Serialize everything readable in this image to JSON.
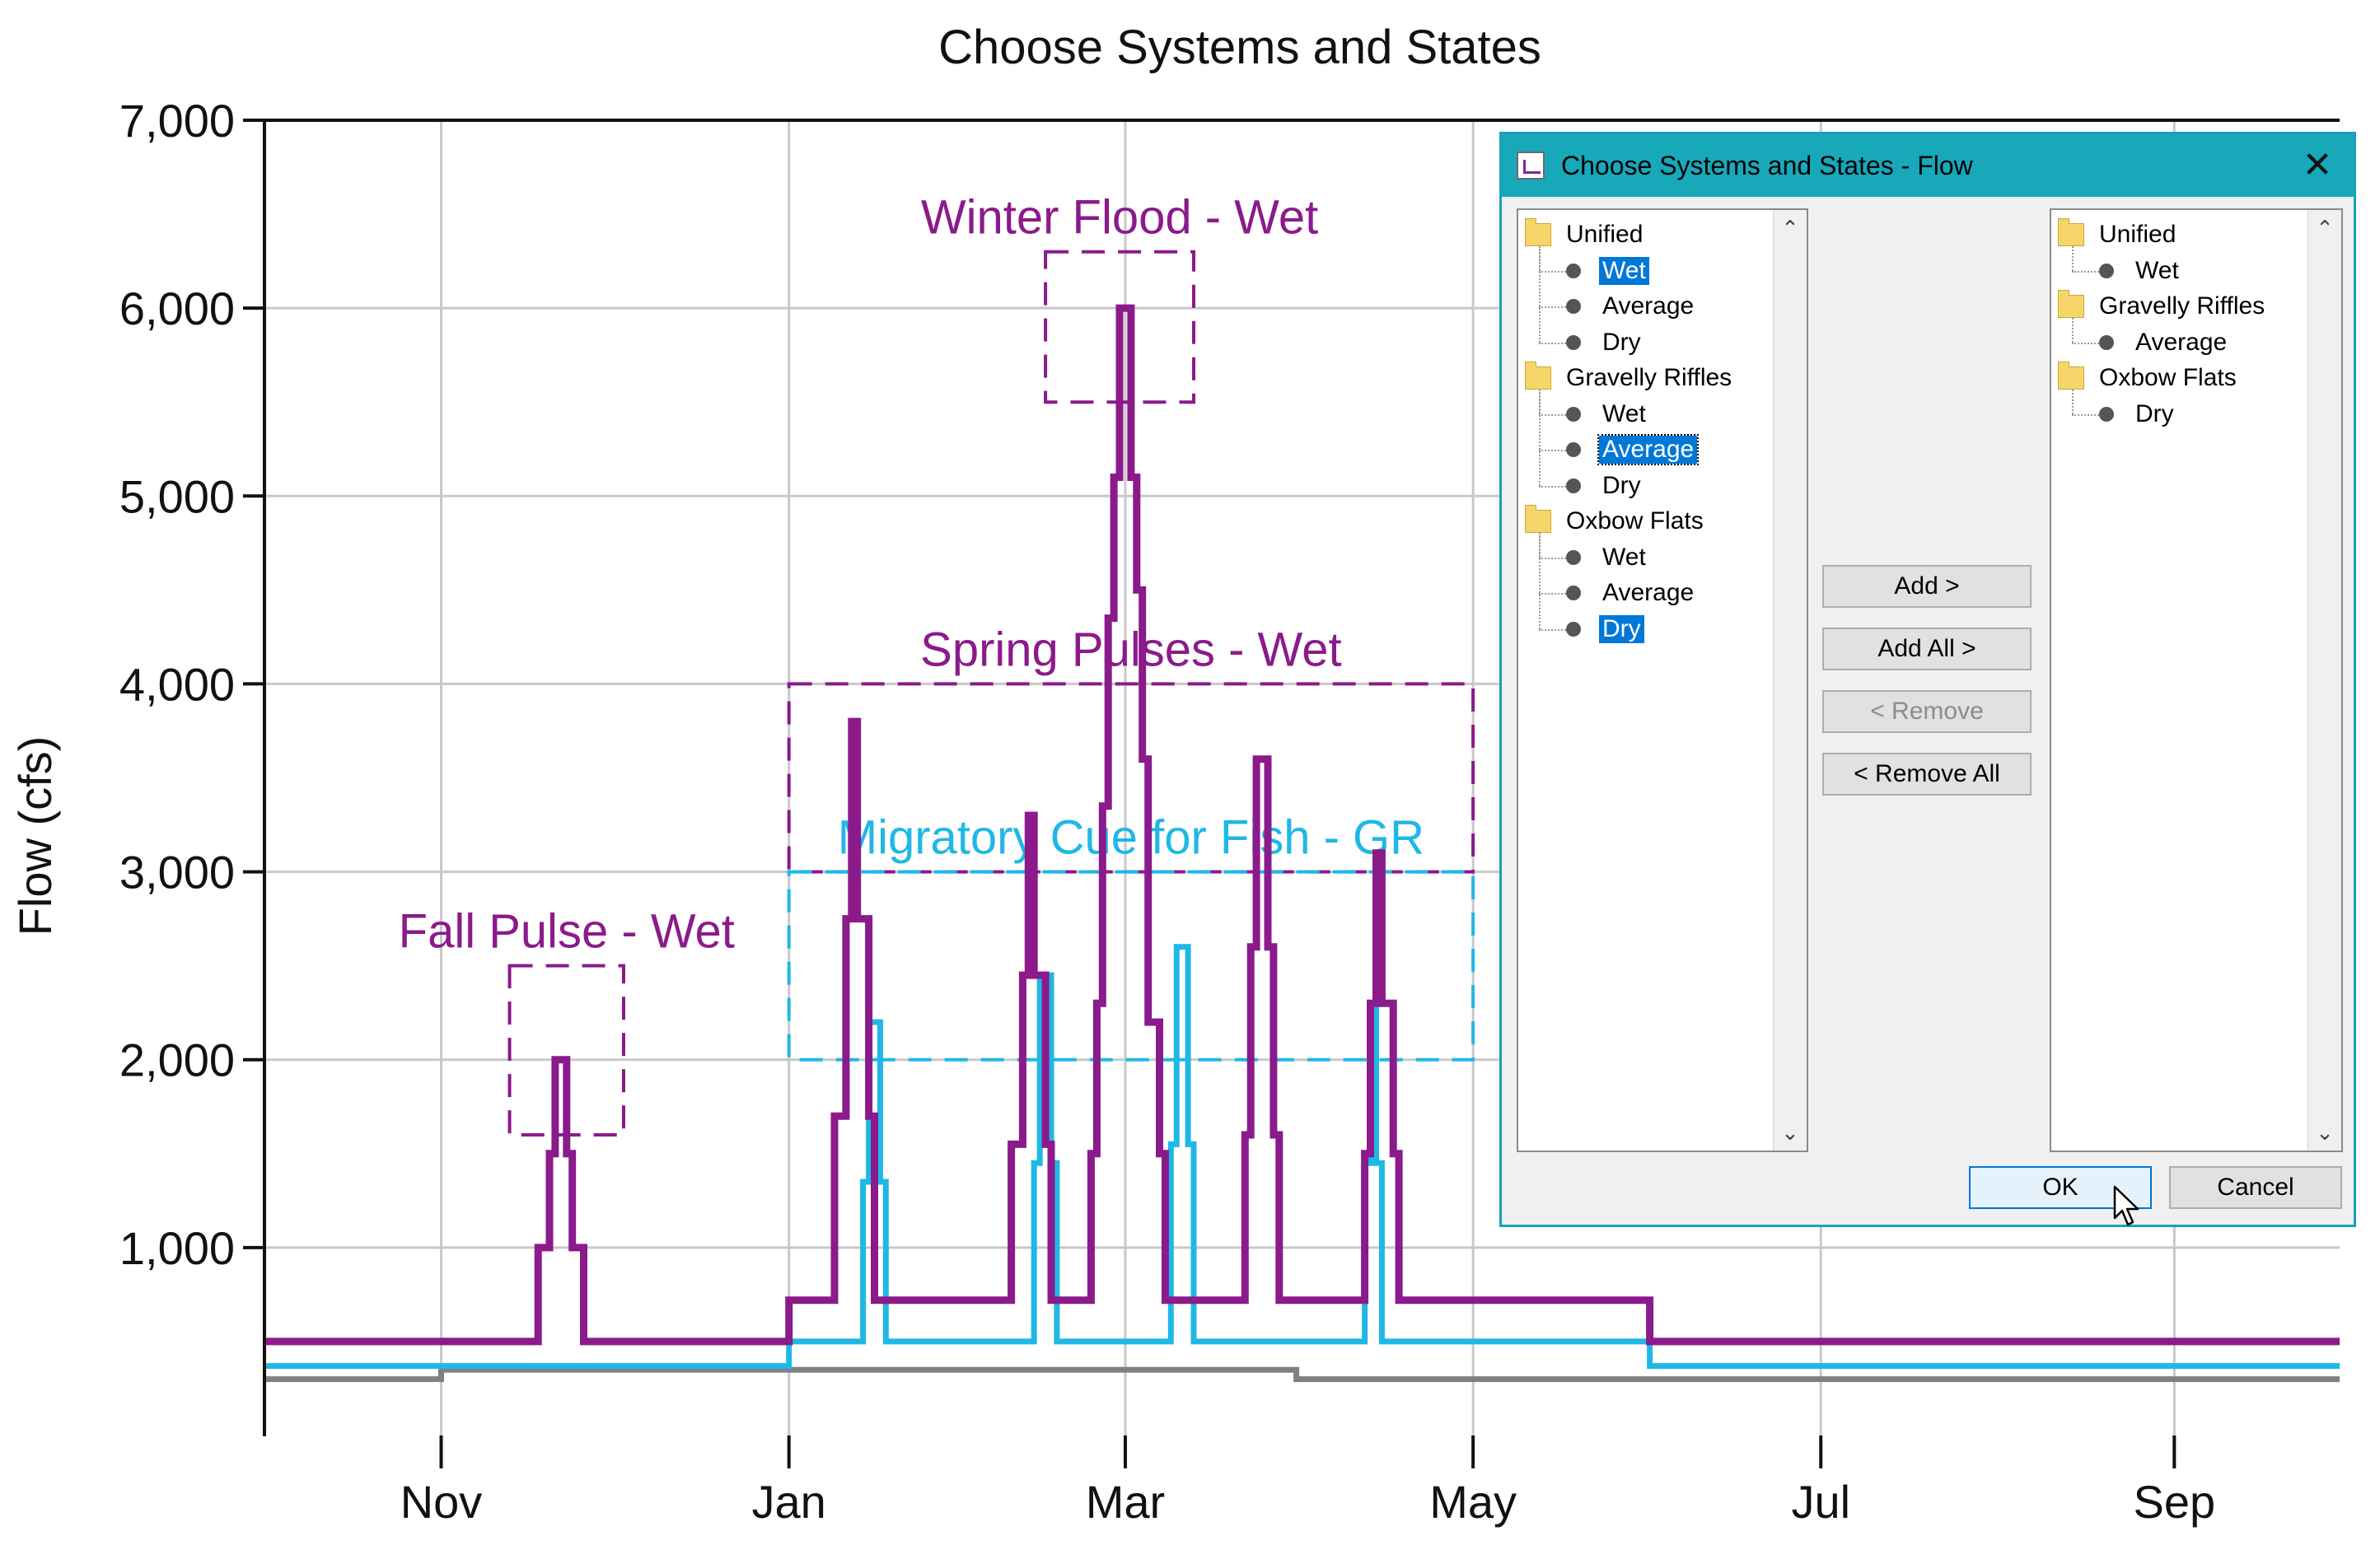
{
  "chart_data": {
    "type": "line",
    "title": "Choose Systems and States",
    "ylabel": "Flow (cfs)",
    "xlabel": "",
    "ylim": [
      0,
      7000
    ],
    "yticks": [
      1000,
      2000,
      3000,
      4000,
      5000,
      6000,
      7000
    ],
    "ytick_labels": [
      "1,000",
      "2,000",
      "3,000",
      "4,000",
      "5,000",
      "6,000",
      "7,000"
    ],
    "xlim": [
      "2000-10-01",
      "2001-09-30"
    ],
    "xticks": [
      "2000-11-01",
      "2001-01-01",
      "2001-03-01",
      "2001-05-01",
      "2001-07-01",
      "2001-09-01"
    ],
    "xtick_labels": [
      "Nov",
      "Jan",
      "Mar",
      "May",
      "Jul",
      "Sep"
    ],
    "grid": true,
    "series": [
      {
        "color": "#8b1a8b",
        "points": [
          [
            "2000-10-01",
            500
          ],
          [
            "2000-11-18",
            500
          ],
          [
            "2000-11-18",
            1000
          ],
          [
            "2000-11-20",
            1000
          ],
          [
            "2000-11-20",
            1500
          ],
          [
            "2000-11-21",
            1500
          ],
          [
            "2000-11-21",
            2000
          ],
          [
            "2000-11-23",
            2000
          ],
          [
            "2000-11-23",
            1500
          ],
          [
            "2000-11-24",
            1500
          ],
          [
            "2000-11-24",
            1000
          ],
          [
            "2000-11-26",
            1000
          ],
          [
            "2000-11-26",
            500
          ],
          [
            "2001-01-01",
            500
          ],
          [
            "2001-01-01",
            720
          ],
          [
            "2001-01-09",
            720
          ],
          [
            "2001-01-09",
            1700
          ],
          [
            "2001-01-11",
            1700
          ],
          [
            "2001-01-11",
            2750
          ],
          [
            "2001-01-12",
            2750
          ],
          [
            "2001-01-12",
            3800
          ],
          [
            "2001-01-13",
            3800
          ],
          [
            "2001-01-13",
            2750
          ],
          [
            "2001-01-15",
            2750
          ],
          [
            "2001-01-15",
            1700
          ],
          [
            "2001-01-16",
            1700
          ],
          [
            "2001-01-16",
            720
          ],
          [
            "2001-02-09",
            720
          ],
          [
            "2001-02-09",
            1550
          ],
          [
            "2001-02-11",
            1550
          ],
          [
            "2001-02-11",
            2450
          ],
          [
            "2001-02-12",
            2450
          ],
          [
            "2001-02-12",
            3300
          ],
          [
            "2001-02-13",
            3300
          ],
          [
            "2001-02-13",
            2450
          ],
          [
            "2001-02-15",
            2450
          ],
          [
            "2001-02-15",
            1550
          ],
          [
            "2001-02-16",
            1550
          ],
          [
            "2001-02-16",
            720
          ],
          [
            "2001-02-23",
            720
          ],
          [
            "2001-02-23",
            1500
          ],
          [
            "2001-02-24",
            1500
          ],
          [
            "2001-02-24",
            2300
          ],
          [
            "2001-02-25",
            2300
          ],
          [
            "2001-02-25",
            3350
          ],
          [
            "2001-02-26",
            3350
          ],
          [
            "2001-02-26",
            4350
          ],
          [
            "2001-02-27",
            4350
          ],
          [
            "2001-02-27",
            5100
          ],
          [
            "2001-02-28",
            5100
          ],
          [
            "2001-02-28",
            6000
          ],
          [
            "2001-03-02",
            6000
          ],
          [
            "2001-03-02",
            5100
          ],
          [
            "2001-03-03",
            5100
          ],
          [
            "2001-03-03",
            4500
          ],
          [
            "2001-03-04",
            4500
          ],
          [
            "2001-03-04",
            3600
          ],
          [
            "2001-03-05",
            3600
          ],
          [
            "2001-03-05",
            2200
          ],
          [
            "2001-03-07",
            2200
          ],
          [
            "2001-03-07",
            1500
          ],
          [
            "2001-03-08",
            1500
          ],
          [
            "2001-03-08",
            720
          ],
          [
            "2001-03-22",
            720
          ],
          [
            "2001-03-22",
            1600
          ],
          [
            "2001-03-23",
            1600
          ],
          [
            "2001-03-23",
            2600
          ],
          [
            "2001-03-24",
            2600
          ],
          [
            "2001-03-24",
            3600
          ],
          [
            "2001-03-26",
            3600
          ],
          [
            "2001-03-26",
            2600
          ],
          [
            "2001-03-27",
            2600
          ],
          [
            "2001-03-27",
            1600
          ],
          [
            "2001-03-28",
            1600
          ],
          [
            "2001-03-28",
            720
          ],
          [
            "2001-04-12",
            720
          ],
          [
            "2001-04-12",
            1500
          ],
          [
            "2001-04-13",
            1500
          ],
          [
            "2001-04-13",
            2300
          ],
          [
            "2001-04-14",
            2300
          ],
          [
            "2001-04-14",
            3100
          ],
          [
            "2001-04-15",
            3100
          ],
          [
            "2001-04-15",
            2300
          ],
          [
            "2001-04-17",
            2300
          ],
          [
            "2001-04-17",
            1500
          ],
          [
            "2001-04-18",
            1500
          ],
          [
            "2001-04-18",
            720
          ],
          [
            "2001-06-01",
            720
          ],
          [
            "2001-06-01",
            500
          ],
          [
            "2001-09-30",
            500
          ]
        ]
      },
      {
        "color": "#1fb8e6",
        "points": [
          [
            "2000-10-01",
            370
          ],
          [
            "2001-01-01",
            370
          ],
          [
            "2001-01-01",
            500
          ],
          [
            "2001-01-14",
            500
          ],
          [
            "2001-01-14",
            1350
          ],
          [
            "2001-01-15",
            1350
          ],
          [
            "2001-01-15",
            2200
          ],
          [
            "2001-01-17",
            2200
          ],
          [
            "2001-01-17",
            1350
          ],
          [
            "2001-01-18",
            1350
          ],
          [
            "2001-01-18",
            500
          ],
          [
            "2001-02-13",
            500
          ],
          [
            "2001-02-13",
            1450
          ],
          [
            "2001-02-14",
            1450
          ],
          [
            "2001-02-14",
            2450
          ],
          [
            "2001-02-16",
            2450
          ],
          [
            "2001-02-16",
            1450
          ],
          [
            "2001-02-17",
            1450
          ],
          [
            "2001-02-17",
            500
          ],
          [
            "2001-03-09",
            500
          ],
          [
            "2001-03-09",
            1550
          ],
          [
            "2001-03-10",
            1550
          ],
          [
            "2001-03-10",
            2600
          ],
          [
            "2001-03-12",
            2600
          ],
          [
            "2001-03-12",
            1550
          ],
          [
            "2001-03-13",
            1550
          ],
          [
            "2001-03-13",
            500
          ],
          [
            "2001-04-12",
            500
          ],
          [
            "2001-04-12",
            1450
          ],
          [
            "2001-04-13",
            1450
          ],
          [
            "2001-04-13",
            2300
          ],
          [
            "2001-04-14",
            2300
          ],
          [
            "2001-04-14",
            1450
          ],
          [
            "2001-04-15",
            1450
          ],
          [
            "2001-04-15",
            500
          ],
          [
            "2001-06-01",
            500
          ],
          [
            "2001-06-01",
            370
          ],
          [
            "2001-09-30",
            370
          ]
        ]
      },
      {
        "color": "#808080",
        "points": [
          [
            "2000-10-01",
            300
          ],
          [
            "2000-11-01",
            300
          ],
          [
            "2000-11-01",
            350
          ],
          [
            "2001-03-31",
            350
          ],
          [
            "2001-03-31",
            300
          ],
          [
            "2001-09-30",
            300
          ]
        ]
      }
    ],
    "annotations": [
      {
        "text": "Winter Flood - Wet",
        "color": "#8b1a8b",
        "x0": "2001-02-15",
        "x1": "2001-03-13",
        "y0": 5500,
        "y1": 6300
      },
      {
        "text": "Spring Pulses - Wet",
        "color": "#8b1a8b",
        "x0": "2001-01-01",
        "x1": "2001-05-01",
        "y0": 3000,
        "y1": 4000
      },
      {
        "text": "Migratory Cue for Fish - GR",
        "color": "#1fb8e6",
        "x0": "2001-01-01",
        "x1": "2001-05-01",
        "y0": 2000,
        "y1": 3000
      },
      {
        "text": "Fall Pulse - Wet",
        "color": "#8b1a8b",
        "x0": "2000-11-13",
        "x1": "2000-12-03",
        "y0": 1600,
        "y1": 2500
      }
    ]
  },
  "dialog": {
    "title": "Choose Systems and States - Flow",
    "close_glyph": "✕",
    "left_tree": [
      {
        "type": "folder",
        "label": "Unified"
      },
      {
        "type": "leaf",
        "label": "Wet",
        "state": "selected"
      },
      {
        "type": "leaf",
        "label": "Average"
      },
      {
        "type": "leaf",
        "label": "Dry"
      },
      {
        "type": "folder",
        "label": "Gravelly Riffles"
      },
      {
        "type": "leaf",
        "label": "Wet"
      },
      {
        "type": "leaf",
        "label": "Average",
        "state": "focused"
      },
      {
        "type": "leaf",
        "label": "Dry"
      },
      {
        "type": "folder",
        "label": "Oxbow Flats"
      },
      {
        "type": "leaf",
        "label": "Wet"
      },
      {
        "type": "leaf",
        "label": "Average"
      },
      {
        "type": "leaf",
        "label": "Dry",
        "state": "selected"
      }
    ],
    "right_tree": [
      {
        "type": "folder",
        "label": "Unified"
      },
      {
        "type": "leaf",
        "label": "Wet"
      },
      {
        "type": "folder",
        "label": "Gravelly Riffles"
      },
      {
        "type": "leaf",
        "label": "Average"
      },
      {
        "type": "folder",
        "label": "Oxbow Flats"
      },
      {
        "type": "leaf",
        "label": "Dry"
      }
    ],
    "buttons": {
      "add": "Add >",
      "add_all": "Add All >",
      "remove": "< Remove",
      "remove_all": "< Remove All",
      "ok": "OK",
      "cancel": "Cancel"
    },
    "scroll_up_glyph": "⌃",
    "scroll_down_glyph": "⌄"
  }
}
